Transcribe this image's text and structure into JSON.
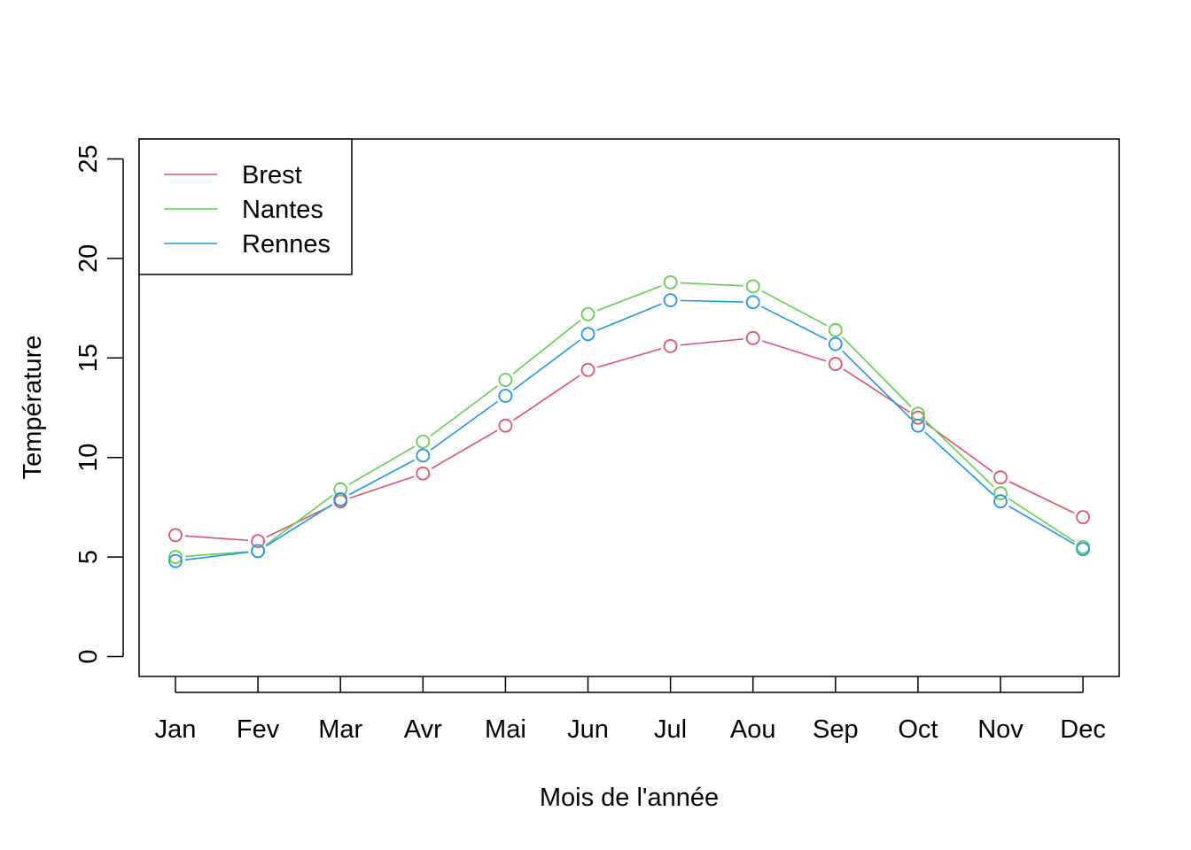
{
  "chart_data": {
    "type": "line",
    "title": "",
    "xlabel": "Mois de l'année",
    "ylabel": "Température",
    "categories": [
      "Jan",
      "Fev",
      "Mar",
      "Avr",
      "Mai",
      "Jun",
      "Jul",
      "Aou",
      "Sep",
      "Oct",
      "Nov",
      "Dec"
    ],
    "ylim": [
      -1,
      26
    ],
    "yticks": [
      0,
      5,
      10,
      15,
      20,
      25
    ],
    "grid": false,
    "legend_position": "top-left",
    "series": [
      {
        "name": "Brest",
        "color": "#DF536B",
        "values": [
          6.1,
          5.8,
          7.8,
          9.2,
          11.6,
          14.4,
          15.6,
          16.0,
          14.7,
          12.0,
          9.0,
          7.0
        ]
      },
      {
        "name": "Nantes",
        "color": "#61D04F",
        "values": [
          5.0,
          5.3,
          8.4,
          10.8,
          13.9,
          17.2,
          18.8,
          18.6,
          16.4,
          12.2,
          8.2,
          5.5
        ]
      },
      {
        "name": "Rennes",
        "color": "#2297E6",
        "values": [
          4.8,
          5.3,
          7.9,
          10.1,
          13.1,
          16.2,
          17.9,
          17.8,
          15.7,
          11.6,
          7.8,
          5.4
        ]
      }
    ]
  }
}
